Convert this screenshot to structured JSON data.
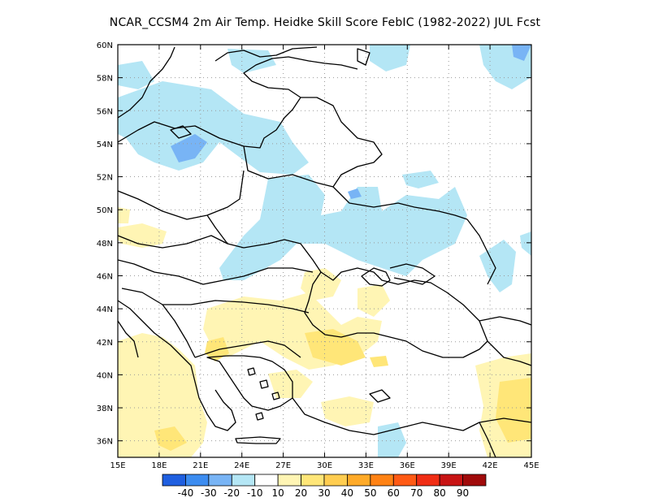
{
  "title": "NCAR_CCSM4  2m Air Temp. Heidke Skill Score FebIC (1982-2022) JUL Fcst",
  "lat_labels": [
    "60N",
    "58N",
    "56N",
    "54N",
    "52N",
    "50N",
    "48N",
    "46N",
    "44N",
    "42N",
    "40N",
    "38N",
    "36N"
  ],
  "lat_values": [
    60,
    58,
    56,
    54,
    52,
    50,
    48,
    46,
    44,
    42,
    40,
    38,
    36
  ],
  "lon_labels": [
    "15E",
    "18E",
    "21E",
    "24E",
    "27E",
    "30E",
    "33E",
    "36E",
    "39E",
    "42E",
    "45E"
  ],
  "lon_values": [
    15,
    18,
    21,
    24,
    27,
    30,
    33,
    36,
    39,
    42,
    45
  ],
  "extent": {
    "lon_min": 15,
    "lon_max": 45,
    "lat_min": 35,
    "lat_max": 60
  },
  "colorbar": {
    "colors": [
      "#1f5fe0",
      "#3c8cf0",
      "#78b4f5",
      "#b4e6f5",
      "#ffffff",
      "#fff5b4",
      "#ffe678",
      "#ffcd50",
      "#ffaa28",
      "#ff8214",
      "#ff5a14",
      "#f02d14",
      "#c81414",
      "#a00a0a"
    ],
    "labels": [
      "-40",
      "-30",
      "-20",
      "-10",
      "10",
      "20",
      "30",
      "40",
      "50",
      "60",
      "70",
      "80",
      "90"
    ]
  },
  "colors": {
    "neg_light": "#b4e6f5",
    "neg_mid": "#78b4f5",
    "pos_light": "#fff5b4",
    "pos_mid": "#ffe678",
    "coast": "#000000",
    "grid": "#999999"
  }
}
